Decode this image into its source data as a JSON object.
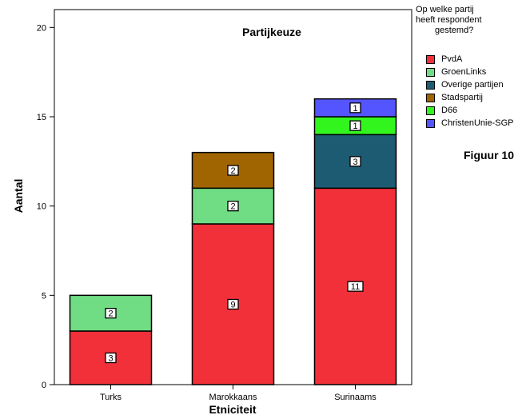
{
  "chart_data": {
    "type": "bar",
    "stacked": true,
    "title": "Partijkeuze",
    "xlabel": "Etniciteit",
    "ylabel": "Aantal",
    "categories": [
      "Turks",
      "Marokkaans",
      "Surinaams"
    ],
    "ylim": [
      0,
      21
    ],
    "yticks": [
      0,
      5,
      10,
      15,
      20
    ],
    "series": [
      {
        "name": "PvdA",
        "color": "#F2303A",
        "values": [
          3,
          9,
          11
        ]
      },
      {
        "name": "GroenLinks",
        "color": "#70DC84",
        "values": [
          2,
          2,
          0
        ]
      },
      {
        "name": "Overige partijen",
        "color": "#1D5B73",
        "values": [
          0,
          0,
          3
        ]
      },
      {
        "name": "Stadspartij",
        "color": "#A06400",
        "values": [
          0,
          2,
          0
        ]
      },
      {
        "name": "D66",
        "color": "#33F51E",
        "values": [
          0,
          0,
          1
        ]
      },
      {
        "name": "ChristenUnie-SGP",
        "color": "#5555FF",
        "values": [
          0,
          0,
          1
        ]
      }
    ],
    "legend": {
      "title_lines": [
        "Op welke partij",
        "heeft respondent",
        "gestemd?"
      ],
      "position": "right"
    }
  },
  "figure_caption": "Figuur 10"
}
